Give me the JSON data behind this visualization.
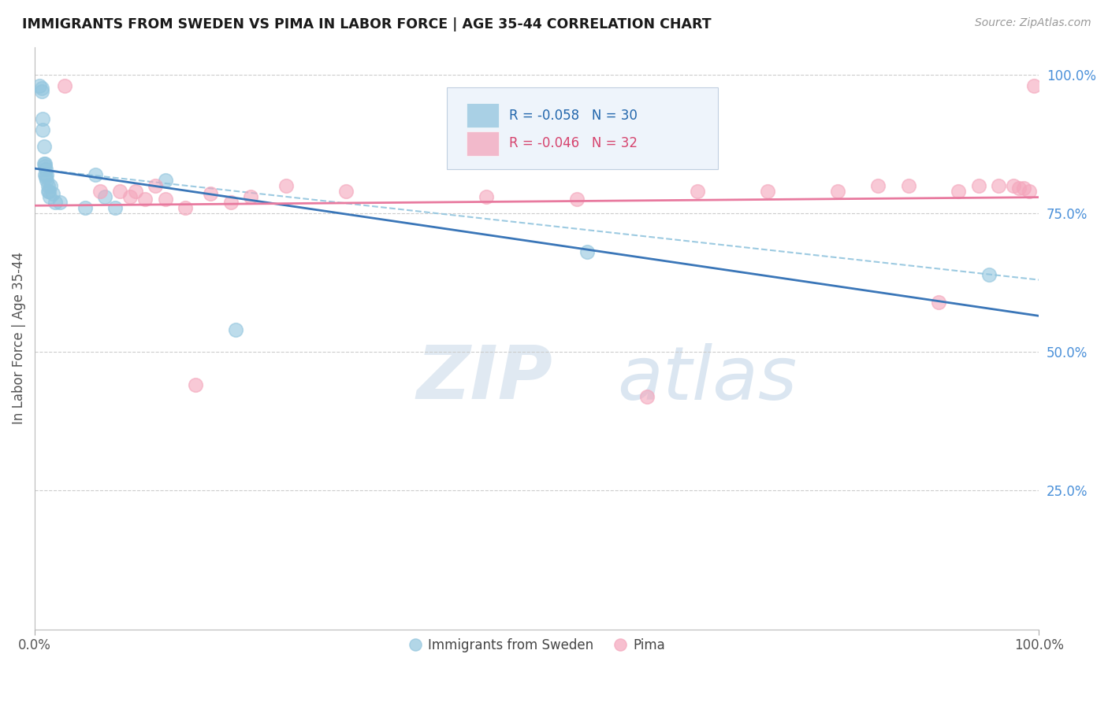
{
  "title": "IMMIGRANTS FROM SWEDEN VS PIMA IN LABOR FORCE | AGE 35-44 CORRELATION CHART",
  "source": "Source: ZipAtlas.com",
  "ylabel": "In Labor Force | Age 35-44",
  "xlim": [
    0.0,
    1.0
  ],
  "ylim": [
    0.0,
    1.05
  ],
  "ytick_positions": [
    0.25,
    0.5,
    0.75,
    1.0
  ],
  "ytick_labels": [
    "25.0%",
    "50.0%",
    "75.0%",
    "100.0%"
  ],
  "blue_color": "#92c5de",
  "pink_color": "#f4a5bb",
  "blue_line_color": "#3a76b8",
  "pink_line_color": "#e87a9f",
  "dashed_line_color": "#92c5de",
  "legend_R_blue": "-0.058",
  "legend_N_blue": "30",
  "legend_R_pink": "-0.046",
  "legend_N_pink": "32",
  "watermark_ZIP": "ZIP",
  "watermark_atlas": "atlas",
  "blue_scatter_x": [
    0.005,
    0.007,
    0.007,
    0.008,
    0.008,
    0.009,
    0.009,
    0.01,
    0.01,
    0.01,
    0.011,
    0.011,
    0.012,
    0.012,
    0.013,
    0.013,
    0.014,
    0.015,
    0.016,
    0.018,
    0.02,
    0.025,
    0.05,
    0.06,
    0.07,
    0.08,
    0.13,
    0.2,
    0.55,
    0.95
  ],
  "blue_scatter_y": [
    0.98,
    0.975,
    0.97,
    0.92,
    0.9,
    0.87,
    0.84,
    0.84,
    0.835,
    0.82,
    0.83,
    0.815,
    0.82,
    0.81,
    0.8,
    0.79,
    0.79,
    0.78,
    0.8,
    0.785,
    0.77,
    0.77,
    0.76,
    0.82,
    0.78,
    0.76,
    0.81,
    0.54,
    0.68,
    0.64
  ],
  "pink_scatter_x": [
    0.03,
    0.065,
    0.085,
    0.095,
    0.1,
    0.11,
    0.12,
    0.13,
    0.15,
    0.16,
    0.175,
    0.195,
    0.215,
    0.25,
    0.31,
    0.45,
    0.54,
    0.61,
    0.66,
    0.73,
    0.8,
    0.84,
    0.87,
    0.9,
    0.92,
    0.94,
    0.96,
    0.975,
    0.98,
    0.985,
    0.99,
    0.995
  ],
  "pink_scatter_y": [
    0.98,
    0.79,
    0.79,
    0.78,
    0.79,
    0.775,
    0.8,
    0.775,
    0.76,
    0.44,
    0.785,
    0.77,
    0.78,
    0.8,
    0.79,
    0.78,
    0.775,
    0.42,
    0.79,
    0.79,
    0.79,
    0.8,
    0.8,
    0.59,
    0.79,
    0.8,
    0.8,
    0.8,
    0.795,
    0.795,
    0.79,
    0.98
  ]
}
